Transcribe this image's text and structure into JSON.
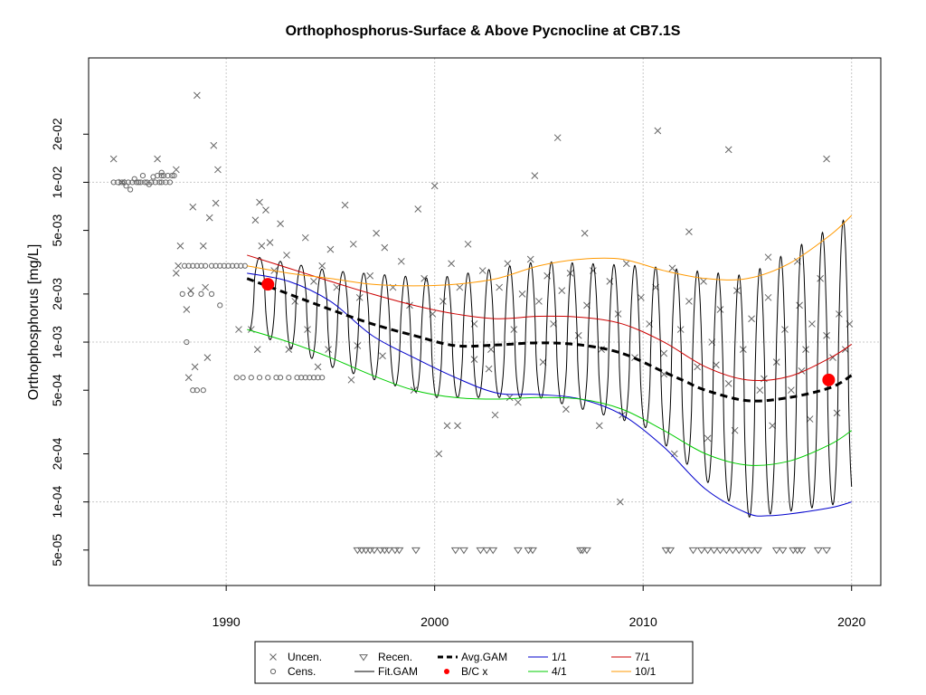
{
  "chart_data": {
    "type": "scatter",
    "title": "Orthophosphorus-Surface & Above Pycnocline at CB7.1S",
    "xlabel": "",
    "ylabel": "Orthophosphorus [mg/L]",
    "xlim": [
      1983.4,
      2021.4
    ],
    "ylim": [
      3e-05,
      0.06
    ],
    "log_y": true,
    "grid": true,
    "x_ticks": [
      1990,
      2000,
      2010,
      2020
    ],
    "x_tick_labels": [
      "1990",
      "2000",
      "2010",
      "2020"
    ],
    "y_ticks": [
      5e-05,
      0.0001,
      0.0002,
      0.0005,
      0.001,
      0.002,
      0.005,
      0.01,
      0.02
    ],
    "y_tick_labels": [
      "5e-05",
      "1e-04",
      "2e-04",
      "5e-04",
      "1e-03",
      "2e-03",
      "5e-03",
      "1e-02",
      "2e-02"
    ],
    "legend_position": "bottom-center",
    "legend": [
      {
        "label": "Uncen.",
        "symbol": "x",
        "color": "#666666"
      },
      {
        "label": "Cens.",
        "symbol": "circle",
        "color": "#666666"
      },
      {
        "label": "Recen.",
        "symbol": "triangle-down",
        "color": "#666666"
      },
      {
        "label": "Fit.GAM",
        "symbol": "line",
        "color": "#000000"
      },
      {
        "label": "Avg.GAM",
        "symbol": "dashed",
        "color": "#000000"
      },
      {
        "label": "B/C x",
        "symbol": "dot",
        "color": "#ff0000"
      },
      {
        "label": "1/1",
        "symbol": "line",
        "color": "#0000cc"
      },
      {
        "label": "4/1",
        "symbol": "line",
        "color": "#00cc00"
      },
      {
        "label": "7/1",
        "symbol": "line",
        "color": "#cc0000"
      },
      {
        "label": "10/1",
        "symbol": "line",
        "color": "#ff9900"
      }
    ],
    "series": [
      {
        "name": "7/1",
        "color": "#cc0000",
        "x": [
          1991,
          1993,
          1995,
          1997,
          1999,
          2001,
          2003,
          2005,
          2007,
          2009,
          2011,
          2013,
          2015,
          2017,
          2019,
          2020
        ],
        "y": [
          0.0035,
          0.0029,
          0.0024,
          0.002,
          0.0017,
          0.0015,
          0.0014,
          0.00145,
          0.00143,
          0.0013,
          0.001,
          0.0007,
          0.00058,
          0.00061,
          0.0008,
          0.00097
        ]
      },
      {
        "name": "10/1",
        "color": "#ff9900",
        "x": [
          1991,
          1993,
          1995,
          1997,
          1999,
          2001,
          2003,
          2005,
          2007,
          2009,
          2011,
          2013,
          2015,
          2017,
          2019,
          2020
        ],
        "y": [
          0.003,
          0.0027,
          0.0025,
          0.0023,
          0.00225,
          0.0023,
          0.0025,
          0.003,
          0.0033,
          0.0033,
          0.0028,
          0.0025,
          0.0025,
          0.0031,
          0.0047,
          0.0062
        ]
      },
      {
        "name": "1/1",
        "color": "#0000cc",
        "x": [
          1991,
          1993,
          1995,
          1997,
          1999,
          2001,
          2003,
          2005,
          2007,
          2009,
          2011,
          2013,
          2015,
          2016,
          2017,
          2019,
          2020
        ],
        "y": [
          0.0027,
          0.0024,
          0.0018,
          0.0011,
          0.0008,
          0.0006,
          0.00048,
          0.00047,
          0.00044,
          0.00035,
          0.00022,
          0.00012,
          8.5e-05,
          8.2e-05,
          8.4e-05,
          9.2e-05,
          0.0001
        ]
      },
      {
        "name": "4/1",
        "color": "#00cc00",
        "x": [
          1991,
          1993,
          1995,
          1997,
          1999,
          2001,
          2003,
          2005,
          2007,
          2009,
          2011,
          2013,
          2015,
          2017,
          2019,
          2020
        ],
        "y": [
          0.0012,
          0.001,
          0.0008,
          0.00062,
          0.0005,
          0.00045,
          0.00044,
          0.00045,
          0.00044,
          0.00038,
          0.00028,
          0.0002,
          0.00017,
          0.00018,
          0.00023,
          0.00028
        ]
      },
      {
        "name": "Avg.GAM",
        "color": "#000000",
        "dashed": true,
        "x": [
          1991,
          1993,
          1995,
          1997,
          1999,
          2001,
          2003,
          2005,
          2007,
          2009,
          2011,
          2012,
          2013,
          2015,
          2017,
          2019,
          2020
        ],
        "y": [
          0.0025,
          0.002,
          0.0016,
          0.0013,
          0.0011,
          0.00095,
          0.00096,
          0.00099,
          0.00096,
          0.00085,
          0.00065,
          0.00057,
          0.0005,
          0.00043,
          0.00045,
          0.00052,
          0.00062
        ]
      },
      {
        "name": "Fit.GAM",
        "color": "#000000",
        "seasonal": true,
        "x_start": 1991.1,
        "x_end": 2020,
        "center_years": [
          1991,
          1995,
          2000,
          2005,
          2010,
          2015,
          2020
        ],
        "center_values": [
          0.0025,
          0.0016,
          0.00098,
          0.00098,
          0.0008,
          0.00043,
          0.00062
        ],
        "peak_values": [
          0.0035,
          0.0028,
          0.0025,
          0.0032,
          0.003,
          0.0026,
          0.0062
        ],
        "trough_values": [
          0.0012,
          0.0007,
          0.00045,
          0.00045,
          0.0003,
          8e-05,
          0.0001
        ]
      }
    ],
    "bc_points": {
      "x": [
        1992,
        2018.9
      ],
      "y": [
        0.0023,
        0.00058
      ]
    },
    "uncensored": {
      "x": [
        1984.6,
        1985.0,
        1986.7,
        1987.6,
        1988.4,
        1988.6,
        1989.4,
        1989.6,
        1987.8,
        1987.7,
        1988.3,
        1988.9,
        1989.0,
        1989.2,
        1989.5,
        1989.1,
        1988.1,
        1988.5,
        1987.6,
        1988.2,
        1991.4,
        1991.6,
        1991.9,
        1992.1,
        1992.3,
        1992.6,
        1991.7,
        1992.9,
        1993.3,
        1993.8,
        1994.2,
        1994.6,
        1995.0,
        1995.3,
        1995.7,
        1996.1,
        1996.4,
        1996.9,
        1997.2,
        1997.6,
        1998.0,
        1998.4,
        1998.8,
        1999.2,
        1999.5,
        1999.9,
        2000.4,
        2000.8,
        2001.2,
        2001.6,
        2001.9,
        2002.3,
        2002.7,
        2003.1,
        2003.5,
        2003.8,
        2004.2,
        2004.6,
        2005.0,
        2005.4,
        2005.7,
        2006.1,
        2006.5,
        2006.9,
        2007.3,
        2007.6,
        2008.0,
        2008.4,
        2008.8,
        2009.2,
        2009.6,
        2009.9,
        2010.3,
        2010.6,
        2011.0,
        2011.4,
        2011.8,
        2012.2,
        2012.6,
        2012.9,
        2013.3,
        2013.7,
        2014.1,
        2014.5,
        2014.8,
        2015.2,
        2015.6,
        2016.0,
        2016.4,
        2016.8,
        2017.1,
        2017.5,
        2017.8,
        2018.1,
        2018.5,
        2018.8,
        2019.1,
        2019.4,
        2019.7,
        2019.9,
        2005.9,
        2010.7,
        2014.1,
        2018.8,
        2008.9,
        2000.0,
        2000.2,
        2004.8,
        2007.2,
        2012.2,
        2016.0,
        2017.4,
        2003.6,
        1993.9,
        1994.9,
        1996.3,
        1997.5,
        2001.9,
        2002.6,
        2005.2,
        2011.0,
        2013.5,
        2015.8,
        2017.6,
        1990.6,
        1991.2,
        1991.5,
        1993.0,
        1994.4,
        1996.0,
        1999.0,
        2000.6,
        2001.1,
        2002.9,
        2004.0,
        2006.3,
        2007.9,
        2009.0,
        2011.5,
        2013.1,
        2014.4,
        2016.2,
        2018.0,
        2019.3
      ],
      "y": [
        0.014,
        0.01,
        0.014,
        0.012,
        0.007,
        0.035,
        0.017,
        0.012,
        0.004,
        0.003,
        0.0021,
        0.004,
        0.0022,
        0.006,
        0.0074,
        0.0008,
        0.0016,
        0.0007,
        0.0027,
        0.0006,
        0.0058,
        0.0075,
        0.0067,
        0.0042,
        0.0028,
        0.0055,
        0.004,
        0.0035,
        0.0018,
        0.0045,
        0.0024,
        0.003,
        0.0038,
        0.0022,
        0.0072,
        0.0041,
        0.0019,
        0.0026,
        0.0048,
        0.0039,
        0.0022,
        0.0032,
        0.0017,
        0.0068,
        0.0025,
        0.0015,
        0.0018,
        0.0031,
        0.0022,
        0.0041,
        0.0013,
        0.0028,
        0.0009,
        0.0022,
        0.0031,
        0.0012,
        0.002,
        0.0033,
        0.0018,
        0.0026,
        0.0013,
        0.0021,
        0.0027,
        0.0011,
        0.0017,
        0.0028,
        0.0009,
        0.0024,
        0.0015,
        0.0031,
        0.0008,
        0.0019,
        0.0013,
        0.0022,
        0.00085,
        0.0029,
        0.0012,
        0.0018,
        0.0007,
        0.0024,
        0.001,
        0.0016,
        0.00055,
        0.0021,
        0.0009,
        0.0014,
        0.0005,
        0.0019,
        0.00075,
        0.0012,
        0.0005,
        0.0017,
        0.0009,
        0.0013,
        0.0025,
        0.0011,
        0.0008,
        0.0015,
        0.0009,
        0.0013,
        0.019,
        0.021,
        0.016,
        0.014,
        0.0001,
        0.0095,
        0.0002,
        0.011,
        0.0048,
        0.0049,
        0.0034,
        0.0032,
        0.00045,
        0.0012,
        0.0009,
        0.00095,
        0.00082,
        0.00078,
        0.00068,
        0.00075,
        0.00063,
        0.00072,
        0.00059,
        0.00066,
        0.0012,
        0.0012,
        0.0009,
        0.0009,
        0.0007,
        0.00058,
        0.0005,
        0.0003,
        0.0003,
        0.00035,
        0.00042,
        0.00038,
        0.0003,
        0.00035,
        0.0002,
        0.00025,
        0.00028,
        0.0003,
        0.00033,
        0.00036
      ]
    },
    "censored": {
      "x": [
        1984.6,
        1984.8,
        1985.0,
        1985.1,
        1985.3,
        1985.5,
        1985.7,
        1985.9,
        1986.1,
        1986.2,
        1986.4,
        1986.6,
        1986.8,
        1986.9,
        1987.1,
        1987.3,
        1985.2,
        1985.6,
        1985.8,
        1986.0,
        1986.3,
        1986.5,
        1986.7,
        1987.0,
        1987.2,
        1987.4,
        1985.4,
        1986.9,
        1988.0,
        1988.2,
        1988.4,
        1988.6,
        1988.8,
        1989.0,
        1989.3,
        1989.5,
        1989.7,
        1989.9,
        1990.1,
        1990.3,
        1990.5,
        1990.7,
        1990.9,
        1987.9,
        1988.3,
        1988.8,
        1989.3,
        1989.7,
        1988.4,
        1988.6,
        1988.9,
        1988.1,
        1990.5,
        1990.8,
        1991.2,
        1991.6,
        1992.0,
        1992.4,
        1992.6,
        1993.0,
        1993.4,
        1993.6,
        1993.8,
        1994.0,
        1994.2,
        1994.4,
        1994.6,
        1986.9,
        1987.5
      ],
      "y": [
        0.01,
        0.01,
        0.01,
        0.01,
        0.01,
        0.01,
        0.01,
        0.01,
        0.01,
        0.01,
        0.01,
        0.01,
        0.01,
        0.01,
        0.01,
        0.01,
        0.0095,
        0.0105,
        0.01,
        0.011,
        0.0097,
        0.0108,
        0.011,
        0.011,
        0.011,
        0.011,
        0.009,
        0.0115,
        0.003,
        0.003,
        0.003,
        0.003,
        0.003,
        0.003,
        0.003,
        0.003,
        0.003,
        0.003,
        0.003,
        0.003,
        0.003,
        0.003,
        0.003,
        0.002,
        0.002,
        0.002,
        0.002,
        0.0017,
        0.0005,
        0.0005,
        0.0005,
        0.001,
        0.0006,
        0.0006,
        0.0006,
        0.0006,
        0.0006,
        0.0006,
        0.0006,
        0.0006,
        0.0006,
        0.0006,
        0.0006,
        0.0006,
        0.0006,
        0.0006,
        0.0006,
        0.011,
        0.011
      ]
    },
    "recensored": {
      "x": [
        1996.3,
        1996.5,
        1996.7,
        1996.9,
        1997.1,
        1997.4,
        1997.6,
        1997.8,
        1998.1,
        1998.3,
        1999.1,
        2001.0,
        2001.4,
        2002.2,
        2002.5,
        2002.8,
        2004.0,
        2004.5,
        2004.7,
        2007.0,
        2007.1,
        2007.3,
        2011.1,
        2011.3,
        2012.4,
        2012.8,
        2013.1,
        2013.4,
        2013.7,
        2014.0,
        2014.3,
        2014.6,
        2014.9,
        2015.2,
        2015.5,
        2016.4,
        2016.7,
        2017.2,
        2017.4,
        2017.6,
        2018.4,
        2018.8
      ],
      "y": [
        5e-05,
        5e-05,
        5e-05,
        5e-05,
        5e-05,
        5e-05,
        5e-05,
        5e-05,
        5e-05,
        5e-05,
        5e-05,
        5e-05,
        5e-05,
        5e-05,
        5e-05,
        5e-05,
        5e-05,
        5e-05,
        5e-05,
        5e-05,
        5e-05,
        5e-05,
        5e-05,
        5e-05,
        5e-05,
        5e-05,
        5e-05,
        5e-05,
        5e-05,
        5e-05,
        5e-05,
        5e-05,
        5e-05,
        5e-05,
        5e-05,
        5e-05,
        5e-05,
        5e-05,
        5e-05,
        5e-05,
        5e-05,
        5e-05
      ]
    }
  }
}
